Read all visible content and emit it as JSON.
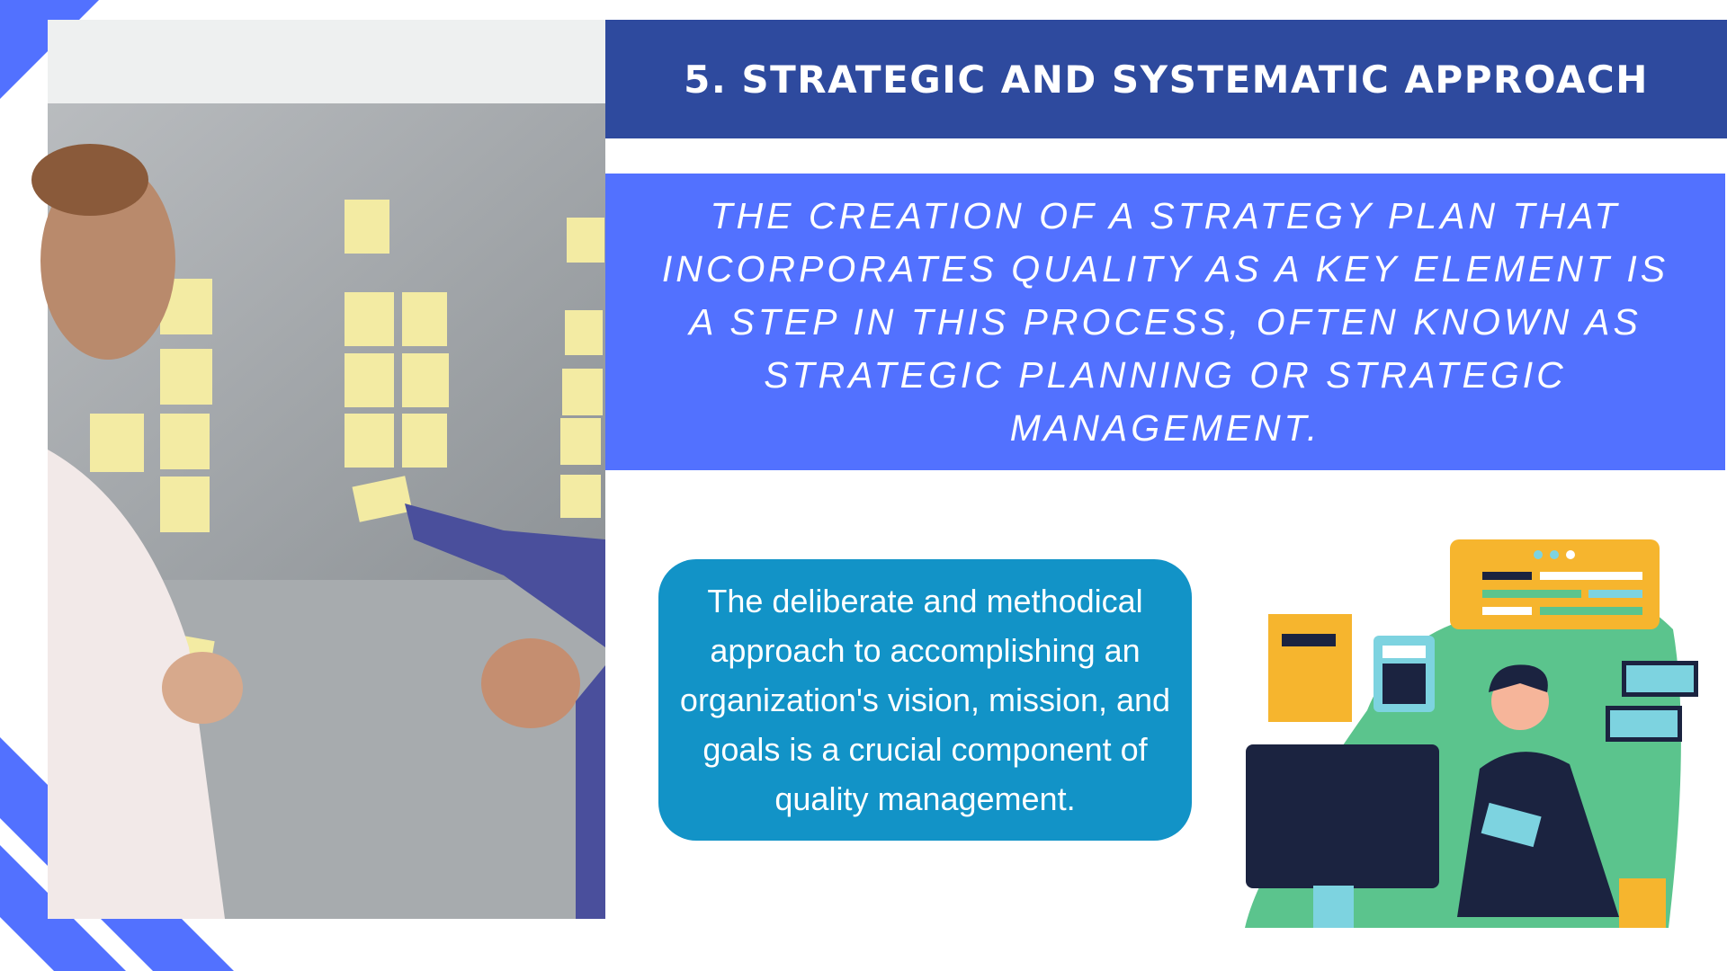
{
  "slide": {
    "title": "5. STRATEGIC AND SYSTEMATIC APPROACH",
    "subtitle": "THE CREATION OF A STRATEGY PLAN THAT INCORPORATES QUALITY AS A KEY ELEMENT IS A STEP IN THIS PROCESS, OFTEN KNOWN AS STRATEGIC PLANNING OR STRATEGIC MANAGEMENT.",
    "body": "The deliberate and methodical approach to accomplishing an organization's vision, mission, and goals is a crucial component of quality management."
  }
}
